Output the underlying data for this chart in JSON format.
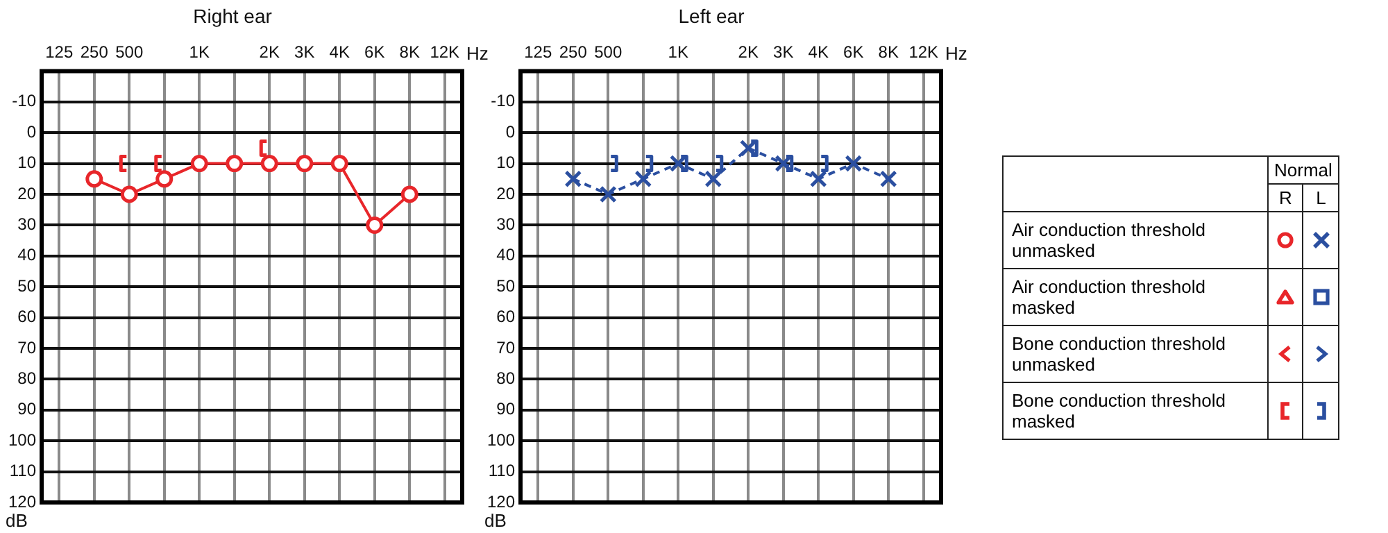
{
  "chart_data": [
    {
      "type": "line",
      "title": "Right ear",
      "xlabel": "Hz",
      "ylabel": "dB",
      "categories": [
        "125",
        "250",
        "500",
        null,
        "1K",
        null,
        "2K",
        "3K",
        "4K",
        "6K",
        "8K",
        "12K"
      ],
      "ylim": [
        120,
        -20
      ],
      "yticks": [
        -10,
        0,
        10,
        20,
        30,
        40,
        50,
        60,
        70,
        80,
        90,
        100,
        110,
        120
      ],
      "grid": true,
      "series": [
        {
          "type": "line",
          "color": "#e8262a",
          "marker": "circle",
          "line_style": "solid",
          "values": [
            null,
            15,
            20,
            15,
            10,
            10,
            10,
            10,
            10,
            30,
            20,
            null
          ]
        },
        {
          "type": "scatter",
          "color": "#e8262a",
          "values": [
            null,
            null,
            10,
            10,
            null,
            null,
            5,
            null,
            null,
            null,
            null,
            null
          ]
        }
      ]
    },
    {
      "type": "line",
      "title": "Left ear",
      "xlabel": "Hz",
      "ylabel": "dB",
      "categories": [
        "125",
        "250",
        "500",
        null,
        "1K",
        null,
        "2K",
        "3K",
        "4K",
        "6K",
        "8K",
        "12K"
      ],
      "ylim": [
        120,
        -20
      ],
      "yticks": [
        -10,
        0,
        10,
        20,
        30,
        40,
        50,
        60,
        70,
        80,
        90,
        100,
        110,
        120
      ],
      "grid": true,
      "series": [
        {
          "type": "line",
          "color": "#2b4fa0",
          "marker": "cross",
          "line_style": "dashed",
          "values": [
            null,
            15,
            20,
            15,
            10,
            15,
            5,
            10,
            15,
            10,
            15,
            null
          ]
        },
        {
          "type": "scatter",
          "color": "#2b4fa0",
          "values": [
            null,
            null,
            10,
            10,
            10,
            10,
            5,
            10,
            10,
            null,
            null,
            null
          ]
        }
      ]
    },
    {
      "type": "other",
      "legend_title": "Normal",
      "categories": [
        "R",
        "L"
      ],
      "annotations": [
        "Air conduction threshold unmasked",
        "Air conduction threshold masked",
        "Bone conduction threshold unmasked",
        "Bone conduction threshold masked"
      ]
    }
  ]
}
